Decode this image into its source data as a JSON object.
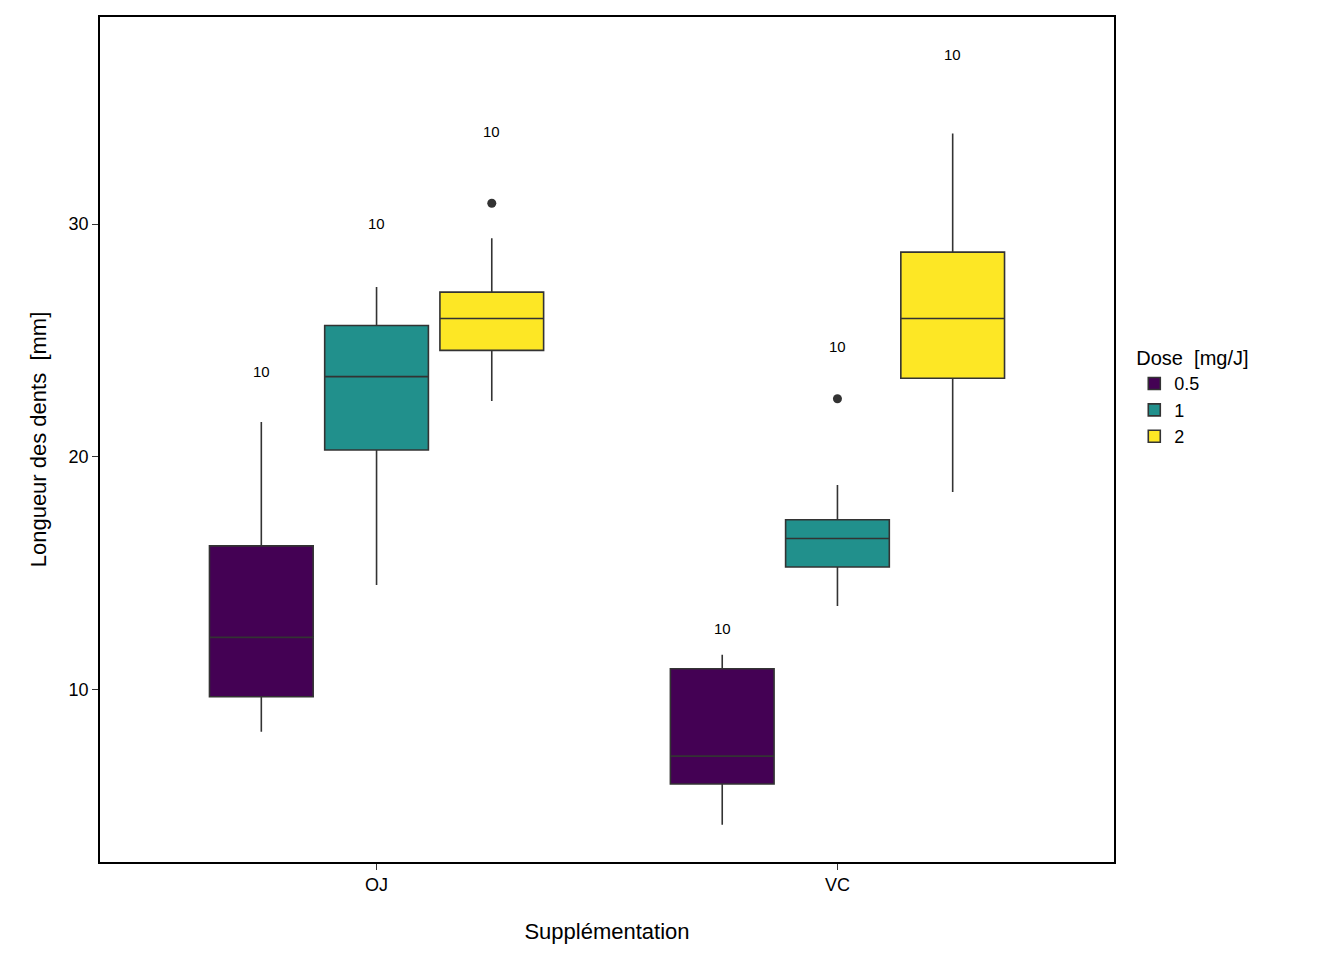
{
  "chart_data": {
    "type": "box",
    "x_label": "Supplémentation",
    "y_label": "Longueur des dents  [mm]",
    "legend_title": "Dose  [mg/J]",
    "legend": "right",
    "grid": false,
    "categories": [
      "OJ",
      "VC"
    ],
    "ylim": [
      2.6,
      38.9
    ],
    "yticks": [
      10,
      20,
      30
    ],
    "series": [
      {
        "name": "0.5",
        "color": "#440154",
        "lower": [
          8.2,
          4.2
        ],
        "q1": [
          9.7,
          5.95
        ],
        "median": [
          12.25,
          7.15
        ],
        "q3": [
          16.18,
          10.9
        ],
        "upper": [
          21.5,
          11.5
        ],
        "outliers": [
          [],
          []
        ],
        "n": [
          10,
          10
        ]
      },
      {
        "name": "1",
        "color": "#21908C",
        "lower": [
          14.5,
          13.6
        ],
        "q1": [
          20.3,
          15.27
        ],
        "median": [
          23.45,
          16.5
        ],
        "q3": [
          25.65,
          17.3
        ],
        "upper": [
          27.3,
          18.8
        ],
        "outliers": [
          [],
          [
            22.5
          ]
        ],
        "n": [
          10,
          10
        ]
      },
      {
        "name": "2",
        "color": "#FDE725",
        "lower": [
          22.4,
          18.5
        ],
        "q1": [
          24.58,
          23.38
        ],
        "median": [
          25.95,
          25.95
        ],
        "q3": [
          27.08,
          28.8
        ],
        "upper": [
          29.4,
          33.9
        ],
        "outliers": [
          [
            30.9
          ],
          []
        ],
        "n": [
          10,
          10
        ]
      }
    ]
  }
}
